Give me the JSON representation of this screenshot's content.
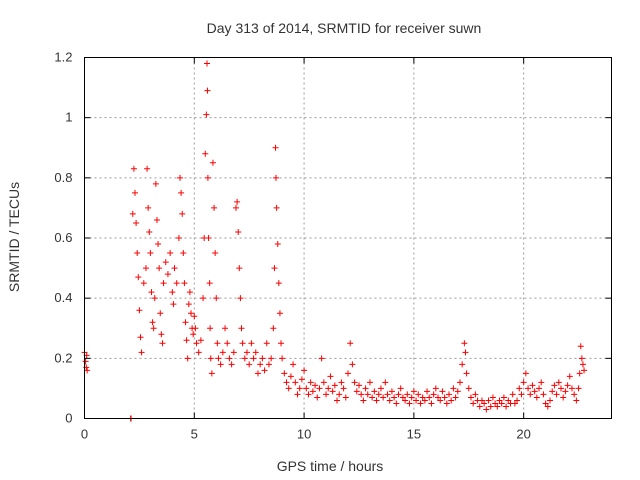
{
  "chart_data": {
    "type": "scatter",
    "title": "Day 313 of 2014, SRMTID for receiver suwn",
    "xlabel": "GPS time / hours",
    "ylabel": "SRMTID / TECUs",
    "xlim": [
      0,
      24
    ],
    "ylim": [
      0,
      1.2
    ],
    "x_ticks": [
      0,
      5,
      10,
      15,
      20
    ],
    "y_ticks": [
      0,
      0.2,
      0.4,
      0.6,
      0.8,
      1,
      1.2
    ],
    "x_tick_labels": [
      "0",
      "5",
      "10",
      "15",
      "20"
    ],
    "y_tick_labels": [
      "0",
      "0.2",
      "0.4",
      "0.6",
      "0.8",
      "1",
      "1.2"
    ],
    "grid": true,
    "marker": "+",
    "color": "#ff0000",
    "series": [
      {
        "name": "SRMTID",
        "points": [
          [
            0.0,
            0.22
          ],
          [
            0.05,
            0.19
          ],
          [
            0.08,
            0.17
          ],
          [
            0.1,
            0.21
          ],
          [
            0.12,
            0.16
          ],
          [
            2.1,
            0.0
          ],
          [
            2.12,
            0.0
          ],
          [
            2.2,
            0.68
          ],
          [
            2.25,
            0.83
          ],
          [
            2.3,
            0.75
          ],
          [
            2.35,
            0.65
          ],
          [
            2.4,
            0.55
          ],
          [
            2.45,
            0.47
          ],
          [
            2.5,
            0.36
          ],
          [
            2.55,
            0.27
          ],
          [
            2.6,
            0.22
          ],
          [
            2.7,
            0.45
          ],
          [
            2.8,
            0.5
          ],
          [
            2.85,
            0.83
          ],
          [
            2.9,
            0.7
          ],
          [
            2.95,
            0.62
          ],
          [
            3.0,
            0.55
          ],
          [
            3.05,
            0.42
          ],
          [
            3.1,
            0.32
          ],
          [
            3.15,
            0.3
          ],
          [
            3.2,
            0.4
          ],
          [
            3.25,
            0.78
          ],
          [
            3.3,
            0.66
          ],
          [
            3.35,
            0.58
          ],
          [
            3.4,
            0.5
          ],
          [
            3.45,
            0.35
          ],
          [
            3.5,
            0.28
          ],
          [
            3.55,
            0.25
          ],
          [
            3.6,
            0.45
          ],
          [
            3.7,
            0.52
          ],
          [
            3.8,
            0.48
          ],
          [
            3.9,
            0.55
          ],
          [
            4.0,
            0.42
          ],
          [
            4.05,
            0.38
          ],
          [
            4.1,
            0.5
          ],
          [
            4.2,
            0.45
          ],
          [
            4.3,
            0.6
          ],
          [
            4.35,
            0.8
          ],
          [
            4.4,
            0.75
          ],
          [
            4.45,
            0.68
          ],
          [
            4.5,
            0.55
          ],
          [
            4.55,
            0.45
          ],
          [
            4.6,
            0.32
          ],
          [
            4.65,
            0.26
          ],
          [
            4.7,
            0.2
          ],
          [
            4.75,
            0.38
          ],
          [
            4.8,
            0.42
          ],
          [
            4.85,
            0.35
          ],
          [
            4.9,
            0.3
          ],
          [
            4.95,
            0.28
          ],
          [
            5.0,
            0.34
          ],
          [
            5.05,
            0.3
          ],
          [
            5.1,
            0.25
          ],
          [
            5.2,
            0.22
          ],
          [
            5.3,
            0.26
          ],
          [
            5.4,
            0.4
          ],
          [
            5.45,
            0.6
          ],
          [
            5.5,
            0.88
          ],
          [
            5.55,
            1.01
          ],
          [
            5.58,
            1.18
          ],
          [
            5.6,
            1.09
          ],
          [
            5.62,
            0.8
          ],
          [
            5.65,
            0.6
          ],
          [
            5.7,
            0.45
          ],
          [
            5.72,
            0.3
          ],
          [
            5.75,
            0.2
          ],
          [
            5.8,
            0.15
          ],
          [
            5.85,
            0.85
          ],
          [
            5.9,
            0.7
          ],
          [
            5.95,
            0.55
          ],
          [
            6.0,
            0.4
          ],
          [
            6.05,
            0.25
          ],
          [
            6.1,
            0.2
          ],
          [
            6.2,
            0.18
          ],
          [
            6.3,
            0.22
          ],
          [
            6.4,
            0.3
          ],
          [
            6.5,
            0.25
          ],
          [
            6.6,
            0.2
          ],
          [
            6.7,
            0.18
          ],
          [
            6.8,
            0.22
          ],
          [
            6.9,
            0.7
          ],
          [
            6.95,
            0.72
          ],
          [
            7.0,
            0.62
          ],
          [
            7.05,
            0.5
          ],
          [
            7.1,
            0.4
          ],
          [
            7.15,
            0.3
          ],
          [
            7.2,
            0.25
          ],
          [
            7.3,
            0.2
          ],
          [
            7.4,
            0.22
          ],
          [
            7.5,
            0.18
          ],
          [
            7.6,
            0.25
          ],
          [
            7.7,
            0.2
          ],
          [
            7.8,
            0.22
          ],
          [
            7.9,
            0.15
          ],
          [
            8.0,
            0.18
          ],
          [
            8.1,
            0.2
          ],
          [
            8.2,
            0.16
          ],
          [
            8.3,
            0.25
          ],
          [
            8.4,
            0.18
          ],
          [
            8.5,
            0.2
          ],
          [
            8.6,
            0.3
          ],
          [
            8.65,
            0.5
          ],
          [
            8.7,
            0.9
          ],
          [
            8.72,
            0.8
          ],
          [
            8.75,
            0.7
          ],
          [
            8.8,
            0.58
          ],
          [
            8.85,
            0.45
          ],
          [
            8.9,
            0.35
          ],
          [
            8.95,
            0.25
          ],
          [
            9.0,
            0.2
          ],
          [
            9.1,
            0.15
          ],
          [
            9.2,
            0.12
          ],
          [
            9.3,
            0.1
          ],
          [
            9.4,
            0.14
          ],
          [
            9.5,
            0.18
          ],
          [
            9.6,
            0.12
          ],
          [
            9.7,
            0.08
          ],
          [
            9.8,
            0.1
          ],
          [
            9.9,
            0.13
          ],
          [
            10.0,
            0.16
          ],
          [
            10.1,
            0.1
          ],
          [
            10.2,
            0.08
          ],
          [
            10.3,
            0.12
          ],
          [
            10.4,
            0.09
          ],
          [
            10.5,
            0.11
          ],
          [
            10.6,
            0.07
          ],
          [
            10.7,
            0.1
          ],
          [
            10.8,
            0.2
          ],
          [
            10.9,
            0.12
          ],
          [
            11.0,
            0.08
          ],
          [
            11.1,
            0.1
          ],
          [
            11.2,
            0.14
          ],
          [
            11.3,
            0.09
          ],
          [
            11.4,
            0.11
          ],
          [
            11.5,
            0.06
          ],
          [
            11.6,
            0.08
          ],
          [
            11.7,
            0.12
          ],
          [
            11.8,
            0.1
          ],
          [
            11.9,
            0.07
          ],
          [
            12.0,
            0.15
          ],
          [
            12.1,
            0.25
          ],
          [
            12.2,
            0.18
          ],
          [
            12.3,
            0.12
          ],
          [
            12.4,
            0.09
          ],
          [
            12.5,
            0.11
          ],
          [
            12.6,
            0.08
          ],
          [
            12.7,
            0.06
          ],
          [
            12.8,
            0.1
          ],
          [
            12.9,
            0.08
          ],
          [
            13.0,
            0.12
          ],
          [
            13.1,
            0.07
          ],
          [
            13.2,
            0.09
          ],
          [
            13.3,
            0.06
          ],
          [
            13.4,
            0.08
          ],
          [
            13.5,
            0.1
          ],
          [
            13.6,
            0.07
          ],
          [
            13.7,
            0.12
          ],
          [
            13.8,
            0.08
          ],
          [
            13.9,
            0.06
          ],
          [
            14.0,
            0.09
          ],
          [
            14.1,
            0.07
          ],
          [
            14.2,
            0.05
          ],
          [
            14.3,
            0.08
          ],
          [
            14.4,
            0.1
          ],
          [
            14.5,
            0.07
          ],
          [
            14.6,
            0.06
          ],
          [
            14.7,
            0.08
          ],
          [
            14.8,
            0.05
          ],
          [
            14.9,
            0.07
          ],
          [
            15.0,
            0.09
          ],
          [
            15.1,
            0.06
          ],
          [
            15.2,
            0.08
          ],
          [
            15.3,
            0.05
          ],
          [
            15.4,
            0.07
          ],
          [
            15.5,
            0.06
          ],
          [
            15.6,
            0.09
          ],
          [
            15.7,
            0.07
          ],
          [
            15.8,
            0.05
          ],
          [
            15.9,
            0.08
          ],
          [
            16.0,
            0.1
          ],
          [
            16.1,
            0.07
          ],
          [
            16.2,
            0.06
          ],
          [
            16.3,
            0.09
          ],
          [
            16.4,
            0.07
          ],
          [
            16.5,
            0.05
          ],
          [
            16.6,
            0.08
          ],
          [
            16.7,
            0.06
          ],
          [
            16.8,
            0.1
          ],
          [
            16.9,
            0.07
          ],
          [
            17.0,
            0.09
          ],
          [
            17.1,
            0.12
          ],
          [
            17.2,
            0.18
          ],
          [
            17.3,
            0.25
          ],
          [
            17.35,
            0.22
          ],
          [
            17.4,
            0.15
          ],
          [
            17.5,
            0.1
          ],
          [
            17.6,
            0.07
          ],
          [
            17.7,
            0.05
          ],
          [
            17.8,
            0.08
          ],
          [
            17.9,
            0.06
          ],
          [
            18.0,
            0.04
          ],
          [
            18.1,
            0.06
          ],
          [
            18.2,
            0.05
          ],
          [
            18.3,
            0.03
          ],
          [
            18.4,
            0.06
          ],
          [
            18.5,
            0.04
          ],
          [
            18.6,
            0.07
          ],
          [
            18.7,
            0.05
          ],
          [
            18.8,
            0.04
          ],
          [
            18.9,
            0.06
          ],
          [
            19.0,
            0.05
          ],
          [
            19.1,
            0.07
          ],
          [
            19.2,
            0.04
          ],
          [
            19.3,
            0.06
          ],
          [
            19.4,
            0.05
          ],
          [
            19.5,
            0.08
          ],
          [
            19.6,
            0.05
          ],
          [
            19.7,
            0.06
          ],
          [
            19.8,
            0.1
          ],
          [
            19.9,
            0.08
          ],
          [
            20.0,
            0.12
          ],
          [
            20.1,
            0.15
          ],
          [
            20.2,
            0.1
          ],
          [
            20.3,
            0.08
          ],
          [
            20.4,
            0.11
          ],
          [
            20.5,
            0.09
          ],
          [
            20.6,
            0.07
          ],
          [
            20.7,
            0.1
          ],
          [
            20.8,
            0.12
          ],
          [
            20.9,
            0.08
          ],
          [
            21.0,
            0.05
          ],
          [
            21.1,
            0.04
          ],
          [
            21.2,
            0.06
          ],
          [
            21.3,
            0.09
          ],
          [
            21.4,
            0.11
          ],
          [
            21.5,
            0.08
          ],
          [
            21.6,
            0.12
          ],
          [
            21.7,
            0.1
          ],
          [
            21.8,
            0.07
          ],
          [
            21.9,
            0.09
          ],
          [
            22.0,
            0.11
          ],
          [
            22.1,
            0.14
          ],
          [
            22.2,
            0.1
          ],
          [
            22.3,
            0.08
          ],
          [
            22.4,
            0.06
          ],
          [
            22.5,
            0.1
          ],
          [
            22.55,
            0.15
          ],
          [
            22.6,
            0.24
          ],
          [
            22.65,
            0.2
          ],
          [
            22.7,
            0.18
          ],
          [
            22.75,
            0.16
          ]
        ]
      }
    ]
  }
}
